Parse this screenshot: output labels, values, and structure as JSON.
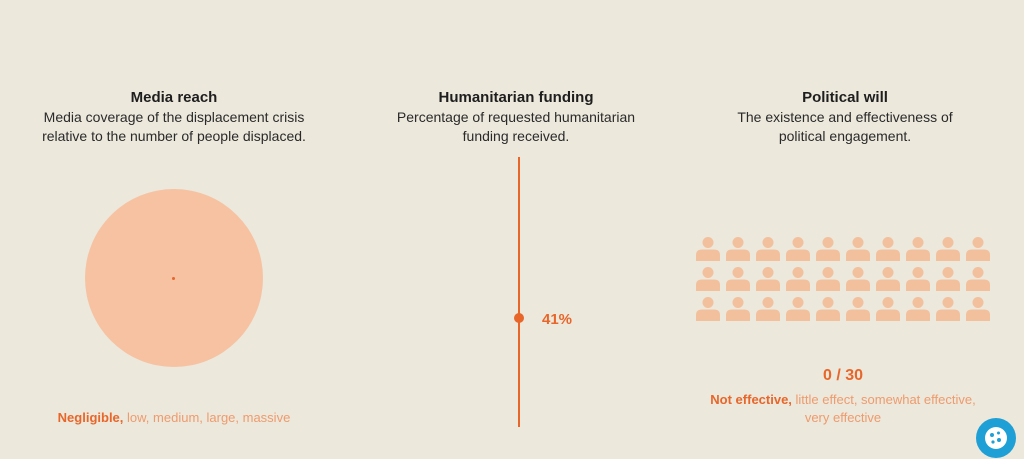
{
  "colors": {
    "background": "#ece8dc",
    "accent": "#e8662a",
    "circle_fill": "#f6c2a2",
    "person_fill": "#f3c09d",
    "muted_text": "#ee9b6d",
    "cookie_button": "#1e9fd6"
  },
  "media": {
    "title": "Media reach",
    "description_line1": "Media coverage of the displacement crisis",
    "description_line2": "relative to the number of people displaced.",
    "scale_selected": "Negligible,",
    "scale_rest": " low, medium, large, massive"
  },
  "funding": {
    "title": "Humanitarian funding",
    "description_line1": "Percentage of requested humanitarian",
    "description_line2": "funding received.",
    "value": 41,
    "value_label": "41%"
  },
  "political": {
    "title": "Political will",
    "description_line1": "The existence and effectiveness of",
    "description_line2": "political engagement.",
    "total_icons": 30,
    "active_icons": 0,
    "ratio_label": "0 / 30",
    "scale_selected": "Not effective,",
    "scale_rest_line1": " little effect, somewhat effective,",
    "scale_rest_line2": "very effective",
    "icon": "person-icon"
  },
  "cookie_button": {
    "icon": "cookie-icon"
  }
}
